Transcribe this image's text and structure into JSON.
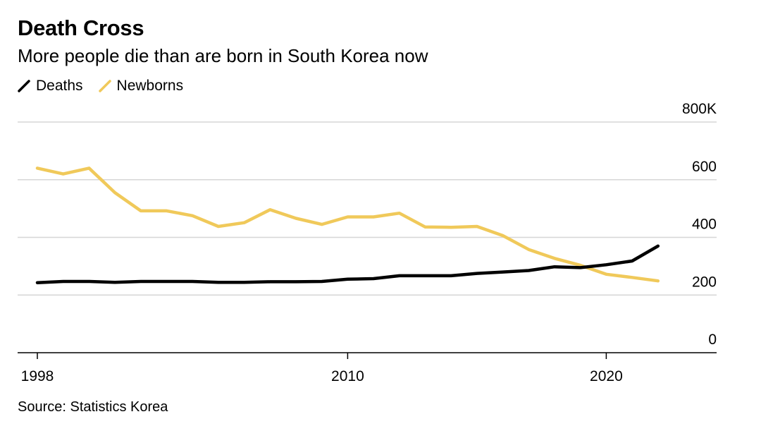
{
  "title": "Death Cross",
  "subtitle": "More people die than are born in South Korea now",
  "source": "Source: Statistics Korea",
  "colors": {
    "deaths": "#000000",
    "newborns": "#f0c95a",
    "grid": "#d6d6d6",
    "axis": "#000000"
  },
  "chart_data": {
    "type": "line",
    "title": "Death Cross",
    "subtitle": "More people die than are born in South Korea now",
    "x": [
      1998,
      1999,
      2000,
      2001,
      2002,
      2003,
      2004,
      2005,
      2006,
      2007,
      2008,
      2009,
      2010,
      2011,
      2012,
      2013,
      2014,
      2015,
      2016,
      2017,
      2018,
      2019,
      2020,
      2021,
      2022
    ],
    "series": [
      {
        "name": "Deaths",
        "color": "#000000",
        "values": [
          243,
          247,
          247,
          244,
          247,
          247,
          247,
          244,
          244,
          246,
          246,
          247,
          255,
          257,
          267,
          267,
          267,
          275,
          280,
          285,
          298,
          295,
          305,
          318,
          370
        ]
      },
      {
        "name": "Newborns",
        "color": "#f0c95a",
        "values": [
          640,
          620,
          640,
          555,
          492,
          492,
          475,
          438,
          451,
          496,
          466,
          445,
          471,
          471,
          484,
          436,
          435,
          438,
          406,
          358,
          327,
          303,
          272,
          261,
          249
        ]
      }
    ],
    "xlabel": "",
    "ylabel": "",
    "xlim": [
      1998,
      2024
    ],
    "ylim": [
      0,
      800
    ],
    "xticks": [
      1998,
      2010,
      2020
    ],
    "xtick_labels": [
      "1998",
      "2010",
      "2020"
    ],
    "yticks": [
      0,
      200,
      400,
      600,
      800
    ],
    "ytick_labels": [
      "0",
      "200",
      "400",
      "600",
      "800K"
    ],
    "legend": [
      "Deaths",
      "Newborns"
    ],
    "legend_position": "top-left",
    "grid": true
  }
}
